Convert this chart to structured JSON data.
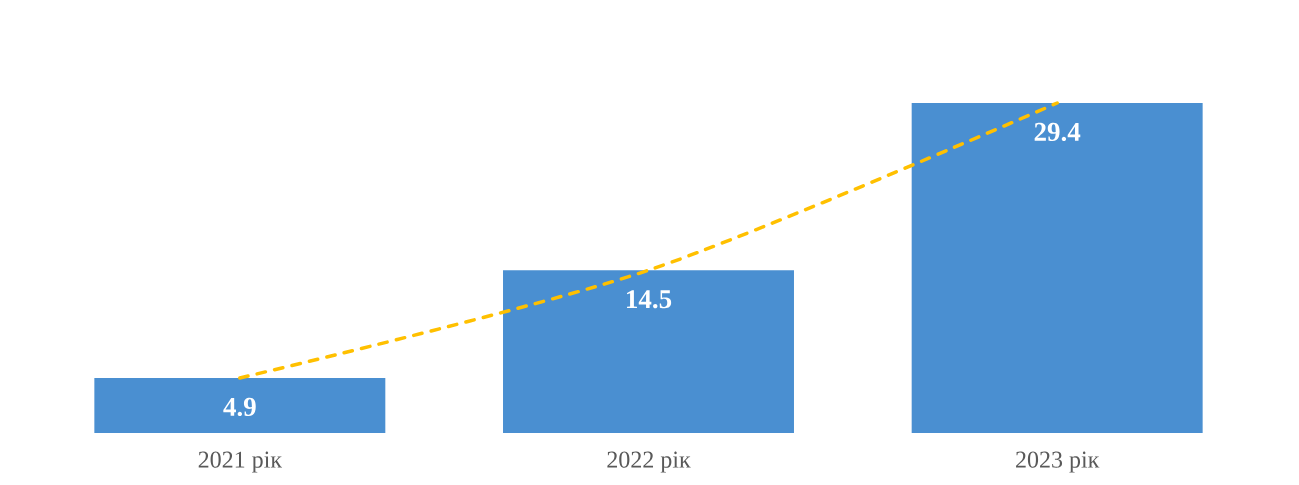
{
  "chart_data": {
    "type": "bar",
    "categories": [
      "2021 рік",
      "2022 рік",
      "2023 рік"
    ],
    "series": [
      {
        "color": "#4a8fd1",
        "values": [
          4.9,
          14.5,
          29.4
        ],
        "data_labels": true
      },
      {
        "type": "line",
        "color": "#ffc000",
        "values": [
          4.9,
          14.5,
          29.4
        ],
        "line_style": "dashed"
      }
    ],
    "tick_labels": "x"
  }
}
